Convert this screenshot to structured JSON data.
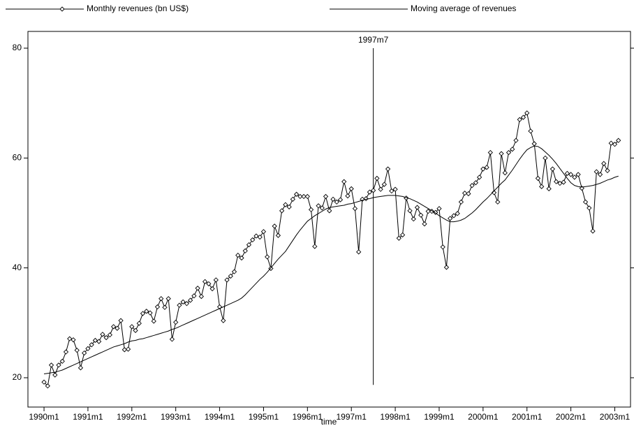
{
  "chart_data": {
    "type": "line",
    "x_label": "time",
    "x": [
      360,
      361,
      362,
      363,
      364,
      365,
      366,
      367,
      368,
      369,
      370,
      371,
      372,
      373,
      374,
      375,
      376,
      377,
      378,
      379,
      380,
      381,
      382,
      383,
      384,
      385,
      386,
      387,
      388,
      389,
      390,
      391,
      392,
      393,
      394,
      395,
      396,
      397,
      398,
      399,
      400,
      401,
      402,
      403,
      404,
      405,
      406,
      407,
      408,
      409,
      410,
      411,
      412,
      413,
      414,
      415,
      416,
      417,
      418,
      419,
      420,
      421,
      422,
      423,
      424,
      425,
      426,
      427,
      428,
      429,
      430,
      431,
      432,
      433,
      434,
      435,
      436,
      437,
      438,
      439,
      440,
      441,
      442,
      443,
      444,
      445,
      446,
      447,
      448,
      449,
      450,
      451,
      452,
      453,
      454,
      455,
      456,
      457,
      458,
      459,
      460,
      461,
      462,
      463,
      464,
      465,
      466,
      467,
      468,
      469,
      470,
      471,
      472,
      473,
      474,
      475,
      476,
      477,
      478,
      479,
      480,
      481,
      482,
      483,
      484,
      485,
      486,
      487,
      488,
      489,
      490,
      491,
      492,
      493,
      494,
      495,
      496,
      497,
      498,
      499,
      500,
      501,
      502,
      503,
      504,
      505,
      506,
      507,
      508,
      509,
      510,
      511,
      512,
      513,
      514,
      515,
      516,
      517
    ],
    "series": [
      {
        "name": "Monthly revenues (bn US$)",
        "color": "#000000",
        "marker": "diamond",
        "values": [
          19.2,
          18.5,
          22.3,
          20.5,
          22.3,
          23,
          24.7,
          27.1,
          26.9,
          25,
          21.8,
          24.5,
          25.3,
          26,
          26.8,
          26.6,
          27.9,
          27.3,
          27.8,
          29.3,
          29,
          30.4,
          25.1,
          25.2,
          29.3,
          28.6,
          29.9,
          31.7,
          32.1,
          31.8,
          30.3,
          32.9,
          34.4,
          32.8,
          34.4,
          27,
          30.1,
          33.2,
          33.8,
          33.5,
          34.1,
          34.9,
          36.3,
          34.8,
          37.5,
          37.1,
          36.2,
          37.8,
          32.9,
          30.4,
          37.8,
          38.5,
          39.3,
          42.3,
          41.8,
          43.1,
          44.2,
          45.1,
          45.8,
          45.6,
          46.6,
          42,
          39.9,
          47.6,
          45.9,
          50.4,
          51.5,
          51.1,
          52.5,
          53.4,
          53,
          53,
          53,
          50.6,
          43.9,
          51.3,
          50.9,
          53,
          50.4,
          52.5,
          52,
          52.4,
          55.7,
          53.1,
          54.4,
          50.8,
          42.9,
          52.5,
          52.6,
          53.8,
          54.1,
          56.3,
          54.3,
          55.2,
          58,
          54,
          54.3,
          45.4,
          46,
          52.7,
          50.4,
          48.9,
          51,
          49.6,
          48,
          50.3,
          50.3,
          50.1,
          50.8,
          43.8,
          40.1,
          49,
          49.5,
          49.9,
          52,
          53.6,
          53.5,
          55,
          55.5,
          56.5,
          58,
          58.3,
          61,
          53.7,
          52,
          60.8,
          57.3,
          61,
          61.6,
          63.2,
          67,
          67.4,
          68.2,
          64.9,
          62.6,
          56.3,
          54.8,
          60,
          54.4,
          58,
          55.7,
          55.4,
          55.6,
          57.2,
          57,
          56.5,
          57,
          54.5,
          52,
          50.9,
          46.7,
          57.5,
          57,
          59,
          57.7,
          62.7,
          62.5,
          63.2
        ]
      },
      {
        "name": "Moving average of revenues",
        "color": "#000000",
        "marker": "none",
        "values": [
          20.7,
          20.8,
          20.9,
          21,
          21.2,
          21.4,
          21.7,
          22,
          22.3,
          22.6,
          22.9,
          23.2,
          23.5,
          23.8,
          24.1,
          24.4,
          24.7,
          25,
          25.3,
          25.6,
          25.8,
          26,
          26.2,
          26.5,
          26.7,
          26.8,
          27,
          27.1,
          27.3,
          27.5,
          27.7,
          27.9,
          28.1,
          28.3,
          28.5,
          28.8,
          29,
          29.3,
          29.6,
          29.9,
          30.2,
          30.5,
          30.8,
          31.1,
          31.4,
          31.7,
          32,
          32.3,
          32.6,
          32.9,
          33.2,
          33.5,
          33.8,
          34.1,
          34.5,
          35.1,
          35.8,
          36.5,
          37.2,
          37.9,
          38.5,
          39.2,
          40,
          40.8,
          41.6,
          42.3,
          43,
          44,
          45,
          46,
          46.9,
          47.7,
          48.5,
          49,
          49.5,
          49.9,
          50.3,
          50.7,
          51,
          51.1,
          51.2,
          51.3,
          51.4,
          51.6,
          51.7,
          51.9,
          52.1,
          52.3,
          52.5,
          52.6,
          52.8,
          52.9,
          53,
          53.1,
          53.2,
          53.2,
          53.2,
          53.1,
          53,
          52.8,
          52.6,
          52.3,
          52,
          51.6,
          51.2,
          50.8,
          50.4,
          50,
          49.5,
          49.1,
          48.7,
          48.4,
          48.4,
          48.5,
          48.7,
          49,
          49.5,
          50,
          50.6,
          51.3,
          52,
          52.6,
          53.3,
          54,
          54.7,
          55.4,
          56,
          56.9,
          57.8,
          58.8,
          59.8,
          60.7,
          61.5,
          61.9,
          62.2,
          62.1,
          61.7,
          61.1,
          60.5,
          59.8,
          59,
          58.1,
          57.2,
          56.3,
          55.5,
          55,
          54.8,
          54.7,
          54.8,
          54.9,
          55,
          55.2,
          55.4,
          55.7,
          56,
          56.2,
          56.5,
          56.7
        ]
      }
    ],
    "xlim": [
      355.6,
      520.3
    ],
    "xticks": [
      {
        "value": 360,
        "label": "1990m1"
      },
      {
        "value": 372,
        "label": "1991m1"
      },
      {
        "value": 384,
        "label": "1992m1"
      },
      {
        "value": 396,
        "label": "1993m1"
      },
      {
        "value": 408,
        "label": "1994m1"
      },
      {
        "value": 420,
        "label": "1995m1"
      },
      {
        "value": 432,
        "label": "1996m1"
      },
      {
        "value": 444,
        "label": "1997m1"
      },
      {
        "value": 456,
        "label": "1998m1"
      },
      {
        "value": 468,
        "label": "1999m1"
      },
      {
        "value": 480,
        "label": "2000m1"
      },
      {
        "value": 492,
        "label": "2001m1"
      },
      {
        "value": 504,
        "label": "2002m1"
      },
      {
        "value": 516,
        "label": "2003m1"
      }
    ],
    "ylim": [
      14.66,
      83.05
    ],
    "yticks": [
      20,
      40,
      60,
      80
    ],
    "vline": {
      "x": 450,
      "label": "1997m7",
      "y": [
        18.7,
        80
      ]
    },
    "grid": false,
    "legend": "top"
  }
}
